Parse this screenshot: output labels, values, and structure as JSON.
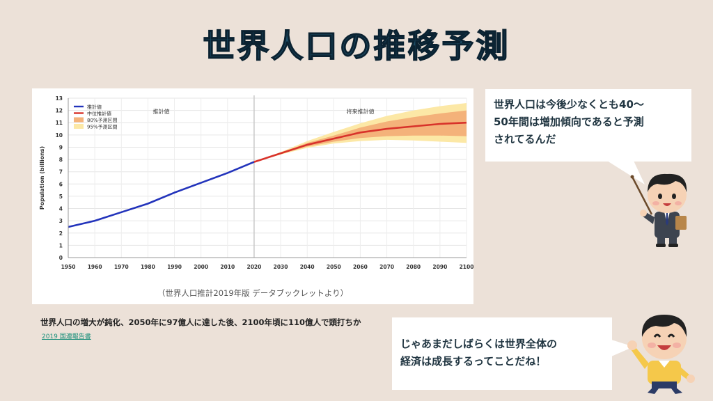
{
  "title": "世界人口の推移予測",
  "chart_caption": "（世界人口推計2019年版 データブックレットより）",
  "headline": "世界人口の増大が鈍化、2050年に97億人に達した後、2100年頃に110億人で頭打ちか",
  "source_link": "2019 国連報告書",
  "bubble_teacher": {
    "lines": [
      "世界人口は今後少なくとも40～",
      "50年間は増加傾向であると予測",
      "されてるんだ"
    ]
  },
  "bubble_student": {
    "lines": [
      "じゃあまだしばらくは世界全体の",
      "経済は成長するってことだね！"
    ]
  },
  "colors": {
    "background": "#ece1d8",
    "title": "#1d4d66",
    "estimate_line": "#2233bb",
    "projection_line": "#d8322a",
    "interval_80": "#f4b27a",
    "interval_95": "#fce8a6"
  },
  "icons": [
    "teacher-pointing-icon",
    "student-cheering-icon"
  ],
  "chart_data": {
    "type": "line",
    "title": "",
    "xlabel": "",
    "ylabel": "Population (billions)",
    "xlim": [
      1950,
      2100
    ],
    "ylim": [
      0,
      13
    ],
    "xticks": [
      1950,
      1960,
      1970,
      1980,
      1990,
      2000,
      2010,
      2020,
      2030,
      2040,
      2050,
      2060,
      2070,
      2080,
      2090,
      2100
    ],
    "yticks": [
      0,
      1,
      2,
      3,
      4,
      5,
      6,
      7,
      8,
      9,
      10,
      11,
      12,
      13
    ],
    "grid": true,
    "legend_position": "top-left",
    "divider_x": 2020,
    "region_labels": [
      {
        "text": "推計値",
        "x": 1985
      },
      {
        "text": "将来推計値",
        "x": 2060
      }
    ],
    "x": [
      1950,
      1960,
      1970,
      1980,
      1990,
      2000,
      2010,
      2020,
      2030,
      2040,
      2050,
      2060,
      2070,
      2080,
      2090,
      2100
    ],
    "series": [
      {
        "name": "推計値",
        "role": "estimate",
        "values": [
          2.5,
          3.0,
          3.7,
          4.4,
          5.3,
          6.1,
          6.9,
          7.8,
          null,
          null,
          null,
          null,
          null,
          null,
          null,
          null
        ]
      },
      {
        "name": "中位推計値",
        "role": "median",
        "values": [
          null,
          null,
          null,
          null,
          null,
          null,
          null,
          7.8,
          8.5,
          9.2,
          9.7,
          10.2,
          10.5,
          10.7,
          10.9,
          11.0
        ]
      },
      {
        "name": "80%予測区間",
        "role": "band80",
        "lower": [
          null,
          null,
          null,
          null,
          null,
          null,
          null,
          7.8,
          8.45,
          9.05,
          9.45,
          9.75,
          9.9,
          9.95,
          9.95,
          9.9
        ],
        "upper": [
          null,
          null,
          null,
          null,
          null,
          null,
          null,
          7.8,
          8.55,
          9.35,
          9.95,
          10.6,
          11.1,
          11.45,
          11.75,
          12.0
        ]
      },
      {
        "name": "95%予測区間",
        "role": "band95",
        "lower": [
          null,
          null,
          null,
          null,
          null,
          null,
          null,
          7.8,
          8.4,
          8.95,
          9.3,
          9.5,
          9.6,
          9.55,
          9.45,
          9.35
        ],
        "upper": [
          null,
          null,
          null,
          null,
          null,
          null,
          null,
          7.8,
          8.6,
          9.5,
          10.25,
          10.95,
          11.55,
          12.0,
          12.35,
          12.6
        ]
      }
    ]
  }
}
